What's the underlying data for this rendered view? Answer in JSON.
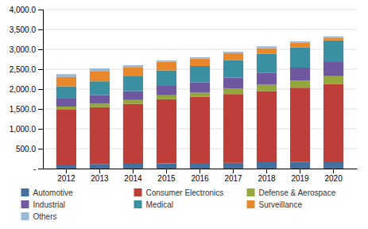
{
  "chart_data": {
    "type": "bar",
    "stacked": true,
    "categories": [
      "2012",
      "2013",
      "2014",
      "2015",
      "2016",
      "2017",
      "2018",
      "2019",
      "2020"
    ],
    "series": [
      {
        "name": "Automotive",
        "color": "#4470a0",
        "values": [
          100,
          115,
          120,
          130,
          140,
          145,
          160,
          165,
          180
        ]
      },
      {
        "name": "Consumer Electronics",
        "color": "#be3f3a",
        "values": [
          1380,
          1430,
          1510,
          1615,
          1665,
          1730,
          1790,
          1870,
          1950
        ]
      },
      {
        "name": "Defense & Aerospace",
        "color": "#92a83a",
        "values": [
          80,
          90,
          95,
          100,
          105,
          145,
          160,
          175,
          195
        ]
      },
      {
        "name": "Industrial",
        "color": "#7058a0",
        "values": [
          200,
          215,
          225,
          235,
          255,
          270,
          295,
          330,
          355
        ]
      },
      {
        "name": "Medical",
        "color": "#3a8fa0",
        "values": [
          310,
          345,
          370,
          390,
          415,
          440,
          480,
          510,
          545
        ]
      },
      {
        "name": "Surveillance",
        "color": "#e8882a",
        "values": [
          235,
          245,
          235,
          215,
          185,
          175,
          145,
          120,
          70
        ]
      },
      {
        "name": "Others",
        "color": "#9ab8d8",
        "values": [
          70,
          80,
          45,
          35,
          35,
          35,
          45,
          30,
          30
        ]
      }
    ],
    "ylim": [
      0,
      4000
    ],
    "yticks": [
      {
        "value": 0,
        "label": "-"
      },
      {
        "value": 500,
        "label": "500.0"
      },
      {
        "value": 1000,
        "label": "1,000.0"
      },
      {
        "value": 1500,
        "label": "1,500.0"
      },
      {
        "value": 2000,
        "label": "2,000.0"
      },
      {
        "value": 2500,
        "label": "2,500.0"
      },
      {
        "value": 3000,
        "label": "3,000.0"
      },
      {
        "value": 3500,
        "label": "3,500.0"
      },
      {
        "value": 4000,
        "label": "4,000.0"
      }
    ],
    "grid": true,
    "legend": "bottom"
  }
}
